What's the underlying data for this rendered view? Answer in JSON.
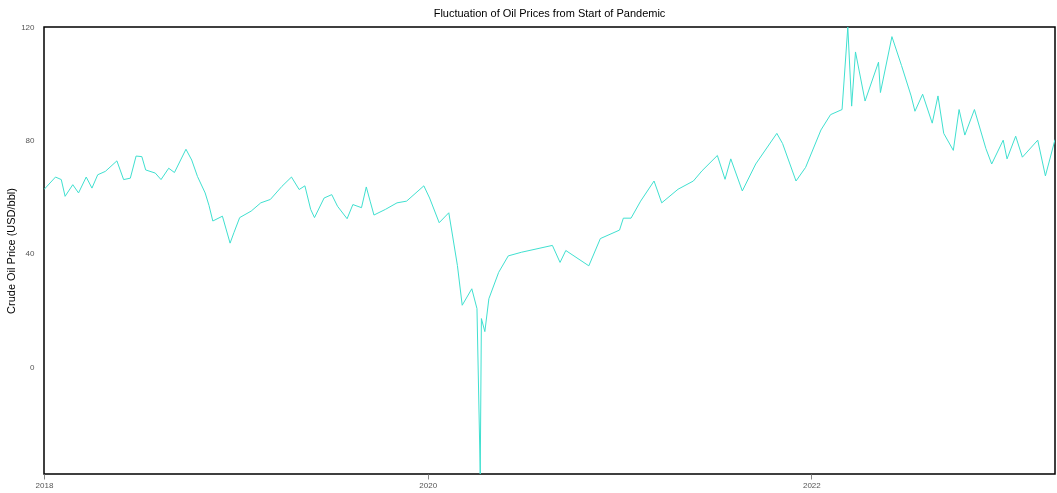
{
  "chart_data": {
    "type": "line",
    "title": "Fluctuation of Oil Prices from Start of Pandemic",
    "ylabel": "Crude Oil Price (USD/bbl)",
    "xlim": [
      2018,
      2023.27
    ],
    "xticks": [
      2018,
      2020,
      2022
    ],
    "ylim": [
      -37.6,
      120
    ],
    "yticks": [
      0,
      40,
      80,
      120
    ],
    "grid": false,
    "marker": "none",
    "line_style": "solid",
    "x": [
      2018.0,
      2018.06,
      2018.09,
      2018.11,
      2018.15,
      2018.18,
      2018.22,
      2018.25,
      2018.28,
      2018.32,
      2018.38,
      2018.415,
      2018.45,
      2018.48,
      2018.51,
      2018.53,
      2018.58,
      2018.61,
      2018.65,
      2018.68,
      2018.74,
      2018.77,
      2018.8,
      2018.84,
      2018.86,
      2018.88,
      2018.93,
      2018.97,
      2018.99,
      2019.02,
      2019.08,
      2019.13,
      2019.18,
      2019.24,
      2019.29,
      2019.33,
      2019.36,
      2019.39,
      2019.41,
      2019.46,
      2019.5,
      2019.53,
      2019.58,
      2019.61,
      2019.655,
      2019.68,
      2019.7,
      2019.72,
      2019.78,
      2019.84,
      2019.89,
      2019.98,
      2020.01,
      2020.06,
      2020.11,
      2020.13,
      2020.155,
      2020.18,
      2020.23,
      2020.257,
      2020.274,
      2020.28,
      2020.298,
      2020.319,
      2020.37,
      2020.42,
      2020.49,
      2020.65,
      2020.69,
      2020.72,
      2020.84,
      2020.9,
      2021.0,
      2021.02,
      2021.06,
      2021.11,
      2021.18,
      2021.22,
      2021.305,
      2021.385,
      2021.43,
      2021.51,
      2021.55,
      2021.58,
      2021.64,
      2021.71,
      2021.82,
      2021.85,
      2021.92,
      2021.97,
      2022.05,
      2022.1,
      2022.16,
      2022.19,
      2022.21,
      2022.23,
      2022.28,
      2022.35,
      2022.36,
      2022.42,
      2022.47,
      2022.52,
      2022.54,
      2022.58,
      2022.63,
      2022.66,
      2022.69,
      2022.74,
      2022.77,
      2022.8,
      2022.85,
      2022.91,
      2022.94,
      2023.0,
      2023.02,
      2023.065,
      2023.1,
      2023.18,
      2023.22,
      2023.27
    ],
    "series": [
      {
        "color": "#40e0d0",
        "values": [
          62.7,
          67.1,
          66.2,
          60.3,
          64.4,
          61.5,
          67.1,
          63.2,
          67.9,
          69.1,
          72.8,
          66.2,
          66.7,
          74.5,
          74.3,
          69.6,
          68.5,
          66.2,
          70.2,
          68.7,
          76.9,
          73.1,
          67.3,
          61.5,
          57.1,
          51.6,
          53.3,
          43.8,
          47.5,
          52.8,
          55.1,
          58,
          59.2,
          63.8,
          67.1,
          62.7,
          64,
          55.7,
          52.8,
          59.7,
          60.9,
          56.8,
          52.4,
          57.4,
          56.3,
          63.6,
          58.6,
          53.7,
          55.7,
          58,
          58.6,
          64,
          59.7,
          51,
          54.5,
          46.3,
          35.9,
          21.9,
          27.7,
          20.7,
          -37.6,
          17.2,
          12.6,
          24.2,
          33.5,
          39.3,
          40.6,
          43,
          37,
          41.2,
          35.8,
          45.4,
          48.4,
          52.6,
          52.6,
          58.6,
          65.7,
          58,
          62.8,
          65.7,
          69.3,
          74.7,
          66.3,
          73.5,
          62.2,
          71.7,
          82.5,
          78.9,
          65.7,
          70.5,
          83.7,
          89.1,
          90.9,
          120,
          92.1,
          111.2,
          93.9,
          107.6,
          96.9,
          116.6,
          106.4,
          95.7,
          90.3,
          96.3,
          86.1,
          95.7,
          82.5,
          76.5,
          90.9,
          81.9,
          90.9,
          77.1,
          71.7,
          80.1,
          73.5,
          81.5,
          74.1,
          80.1,
          67.5,
          80.3
        ]
      }
    ]
  }
}
